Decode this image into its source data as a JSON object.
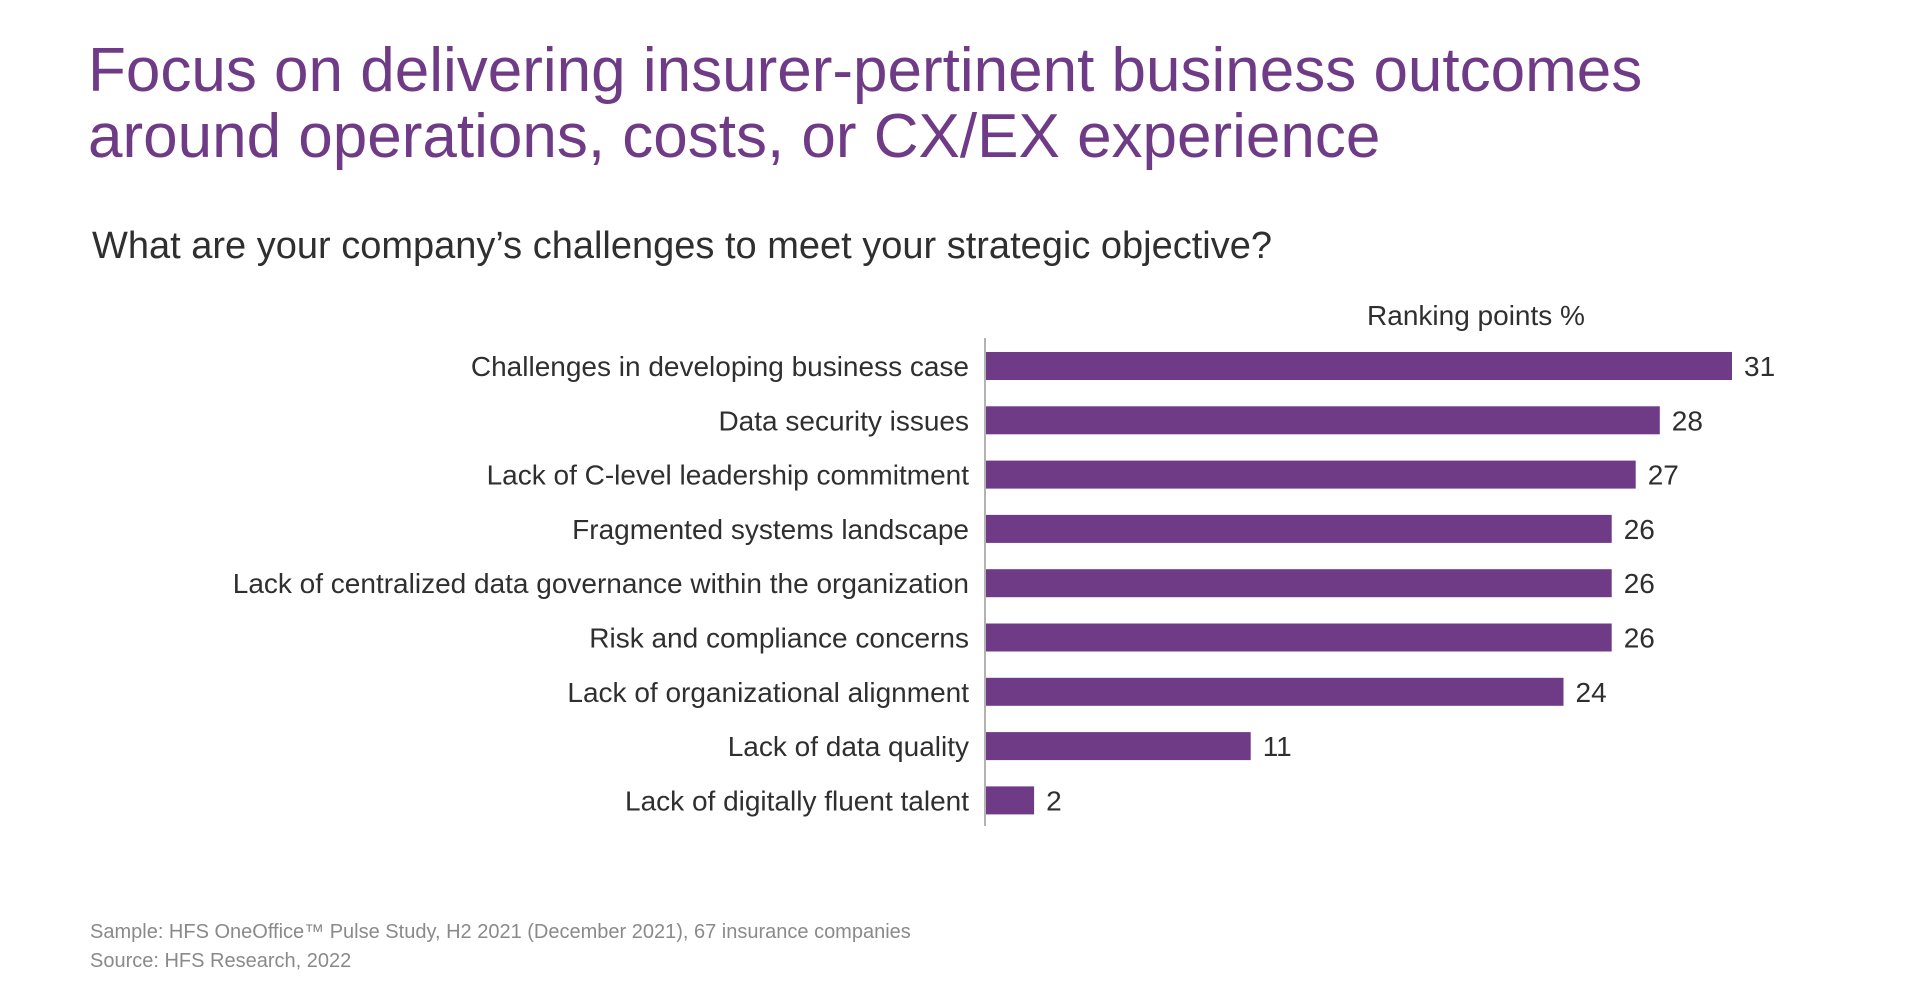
{
  "title": "Focus on delivering insurer-pertinent business outcomes around operations, costs, or CX/EX experience",
  "question": "What are your company’s challenges to meet your strategic objective?",
  "colors": {
    "title": "#6f3a86",
    "bar": "#6f3a86",
    "text": "#2f2f2f",
    "axis": "#9a9a9a",
    "footer": "#8a8a8a"
  },
  "chart_data": {
    "type": "bar",
    "orientation": "horizontal",
    "series_label": "Ranking points %",
    "categories": [
      "Challenges in developing business case",
      "Data security issues",
      "Lack of C-level leadership commitment",
      "Fragmented systems landscape",
      "Lack of centralized data governance within the organization",
      "Risk and compliance concerns",
      "Lack of organizational alignment",
      "Lack of data quality",
      "Lack of digitally fluent talent"
    ],
    "values": [
      31,
      28,
      27,
      26,
      26,
      26,
      24,
      11,
      2
    ],
    "data_labels": [
      "31",
      "28",
      "27",
      "26",
      "26",
      "26",
      "24",
      "11",
      "2"
    ],
    "xlim": [
      0,
      31
    ],
    "grid": false,
    "legend": "none"
  },
  "footer": {
    "sample": "Sample: HFS OneOffice™ Pulse Study, H2 2021 (December 2021), 67 insurance companies",
    "source": "Source: HFS Research, 2022"
  }
}
